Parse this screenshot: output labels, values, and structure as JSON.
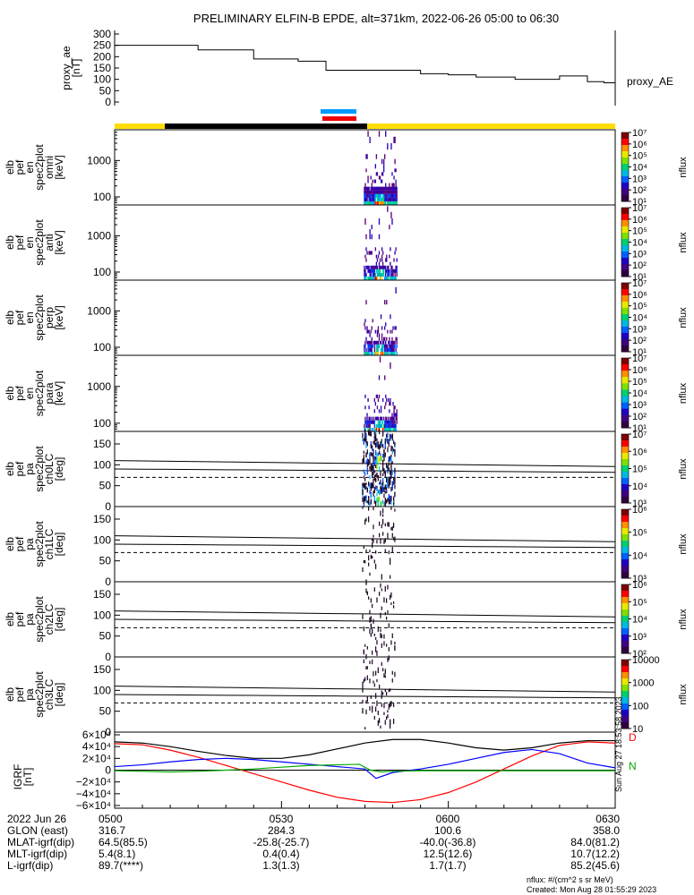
{
  "title": "PRELIMINARY ELFIN-B EPDE, alt=371km, 2022-06-26 05:00 to 06:30",
  "chart_data": [
    {
      "type": "line",
      "panel": "proxy_ae",
      "ylabel_lines": [
        "proxy_ae",
        "[nT]"
      ],
      "right_label": "proxy_AE",
      "yticks": [
        "300",
        "250",
        "200",
        "150",
        "100",
        "50",
        "0"
      ],
      "ylim": [
        0,
        300
      ],
      "x_minutes": [
        0,
        10,
        15,
        25,
        33,
        38,
        45,
        55,
        60,
        65,
        72,
        80,
        85,
        88,
        90
      ],
      "values": [
        250,
        250,
        230,
        190,
        180,
        140,
        140,
        125,
        120,
        110,
        100,
        115,
        90,
        85,
        95
      ]
    },
    {
      "type": "heatmap",
      "panel": "spec-omni",
      "ylabel_lines": [
        "elb",
        "pef",
        "en",
        "spec2plot",
        "omni",
        "[keV]"
      ],
      "yticks": [
        "1000",
        "100"
      ],
      "ylim": [
        60,
        7000
      ],
      "colorbar": {
        "label": "nflux",
        "ticks": [
          "10⁷",
          "10⁶",
          "10⁵",
          "10⁴",
          "10³",
          "10²",
          "10¹"
        ]
      }
    },
    {
      "type": "heatmap",
      "panel": "spec-anti",
      "ylabel_lines": [
        "elb",
        "pef",
        "en",
        "spec2plot",
        "anti",
        "[keV]"
      ],
      "yticks": [
        "1000",
        "100"
      ],
      "ylim": [
        60,
        7000
      ],
      "colorbar": {
        "label": "nflux",
        "ticks": [
          "10⁷",
          "10⁶",
          "10⁵",
          "10⁴",
          "10³",
          "10²",
          "10¹"
        ]
      }
    },
    {
      "type": "heatmap",
      "panel": "spec-perp",
      "ylabel_lines": [
        "elb",
        "pef",
        "en",
        "spec2plot",
        "perp",
        "[keV]"
      ],
      "yticks": [
        "1000",
        "100"
      ],
      "ylim": [
        60,
        7000
      ],
      "colorbar": {
        "label": "nflux",
        "ticks": [
          "10⁷",
          "10⁶",
          "10⁵",
          "10⁴",
          "10³",
          "10²",
          "10¹"
        ]
      }
    },
    {
      "type": "heatmap",
      "panel": "spec-para",
      "ylabel_lines": [
        "elb",
        "pef",
        "en",
        "spec2plot",
        "para",
        "[keV]"
      ],
      "yticks": [
        "1000",
        "100"
      ],
      "ylim": [
        60,
        7000
      ],
      "colorbar": {
        "label": "nflux",
        "ticks": [
          "10⁷",
          "10⁶",
          "10⁵",
          "10⁴",
          "10³",
          "10²",
          "10¹"
        ]
      }
    },
    {
      "type": "heatmap",
      "panel": "pa-ch0",
      "ylabel_lines": [
        "elb",
        "pef",
        "pa",
        "spec2plot",
        "ch0LC",
        "[deg]"
      ],
      "yticks": [
        "150",
        "100",
        "50",
        "0"
      ],
      "ylim": [
        0,
        180
      ],
      "colorbar": {
        "label": "nflux",
        "ticks": [
          "10⁷",
          "10⁶",
          "10⁵",
          "10⁴",
          "10³"
        ]
      }
    },
    {
      "type": "heatmap",
      "panel": "pa-ch1",
      "ylabel_lines": [
        "elb",
        "pef",
        "pa",
        "spec2plot",
        "ch1LC",
        "[deg]"
      ],
      "yticks": [
        "150",
        "100",
        "50",
        "0"
      ],
      "ylim": [
        0,
        180
      ],
      "colorbar": {
        "label": "nflux",
        "ticks": [
          "10⁶",
          "10⁵",
          "10⁴",
          "10³"
        ]
      }
    },
    {
      "type": "heatmap",
      "panel": "pa-ch2",
      "ylabel_lines": [
        "elb",
        "pef",
        "pa",
        "spec2plot",
        "ch2LC",
        "[deg]"
      ],
      "yticks": [
        "150",
        "100",
        "50",
        "0"
      ],
      "ylim": [
        0,
        180
      ],
      "colorbar": {
        "label": "nflux",
        "ticks": [
          "10⁶",
          "10⁵",
          "10⁴",
          "10³",
          "10²"
        ]
      }
    },
    {
      "type": "heatmap",
      "panel": "pa-ch3",
      "ylabel_lines": [
        "elb",
        "pef",
        "pa",
        "spec2plot",
        "ch3LC",
        "[deg]"
      ],
      "yticks": [
        "150",
        "100",
        "50",
        "0"
      ],
      "ylim": [
        0,
        180
      ],
      "colorbar": {
        "label": "nflux",
        "ticks": [
          "10000",
          "1000",
          "100",
          "10"
        ]
      }
    },
    {
      "type": "line",
      "panel": "igrf",
      "ylabel_lines": [
        "IGRF",
        "[nT]"
      ],
      "yticks": [
        "6×10⁴",
        "4×10⁴",
        "2×10⁴",
        "0",
        "−2×10⁴",
        "−4×10⁴",
        "−6×10⁴"
      ],
      "ylim": [
        -60000,
        60000
      ],
      "right_labels": [
        "D",
        "N"
      ],
      "series": [
        {
          "color": "#000000",
          "x_minutes": [
            0,
            5,
            10,
            15,
            20,
            25,
            30,
            35,
            40,
            45,
            50,
            55,
            60,
            65,
            70,
            75,
            80,
            85,
            90
          ],
          "values": [
            48000,
            46000,
            40000,
            32000,
            25000,
            20000,
            20000,
            26000,
            36000,
            46000,
            52000,
            52000,
            46000,
            38000,
            34000,
            38000,
            46000,
            50000,
            50000
          ]
        },
        {
          "color": "#ff0000",
          "x_minutes": [
            0,
            5,
            10,
            15,
            20,
            25,
            30,
            35,
            40,
            45,
            50,
            55,
            60,
            65,
            70,
            75,
            80,
            85,
            90
          ],
          "values": [
            45000,
            43000,
            34000,
            22000,
            8000,
            -6000,
            -20000,
            -34000,
            -46000,
            -53000,
            -55000,
            -50000,
            -38000,
            -20000,
            2000,
            24000,
            42000,
            48000,
            46000
          ]
        },
        {
          "color": "#0000ff",
          "x_minutes": [
            0,
            5,
            10,
            15,
            20,
            25,
            30,
            35,
            40,
            45,
            47,
            50,
            55,
            60,
            65,
            70,
            75,
            80,
            85,
            90
          ],
          "values": [
            6000,
            9000,
            14000,
            18000,
            20000,
            18000,
            14000,
            10000,
            6000,
            2000,
            -14000,
            -4000,
            2000,
            10000,
            20000,
            30000,
            35000,
            28000,
            12000,
            4000
          ]
        },
        {
          "color": "#00aa00",
          "x_minutes": [
            0,
            5,
            10,
            15,
            20,
            25,
            30,
            35,
            40,
            44,
            46,
            48,
            50,
            55,
            60,
            65,
            70,
            75,
            80,
            85,
            90
          ],
          "values": [
            -1000,
            -2000,
            -3000,
            -2000,
            0,
            2000,
            5000,
            8000,
            9000,
            10000,
            0,
            -3000,
            -2000,
            -1000,
            -1000,
            -1000,
            -1000,
            -1000,
            -1000,
            -1000,
            -1000
          ]
        }
      ]
    }
  ],
  "xaxis": {
    "row_labels": [
      "2022 Jun 26",
      "GLON (east)",
      "MLAT-igrf(dip)",
      "MLT-igrf(dip)",
      "L-igrf(dip)"
    ],
    "columns": [
      {
        "time": "0500",
        "values": [
          "316.7",
          "64.5(85.5)",
          "5.4(8.1)",
          "89.7(****)"
        ]
      },
      {
        "time": "0530",
        "values": [
          "284.3",
          "-25.8(-25.7)",
          "0.4(0.4)",
          "1.3(1.3)"
        ]
      },
      {
        "time": "0600",
        "values": [
          "100.6",
          "-40.0(-36.8)",
          "12.5(12.6)",
          "1.7(1.7)"
        ]
      },
      {
        "time": "0630",
        "values": [
          "358.0",
          "84.0(81.2)",
          "10.7(12.2)",
          "85.2(45.6)"
        ]
      }
    ]
  },
  "footer": {
    "units": "nflux: #/(cm^2 s sr MeV)",
    "created": "Created: Mon Aug 28 01:55:29 2023",
    "side_stamp": "Sun Aug 27 18:53:58 2023"
  },
  "colors": {
    "state_bar_yellow": "#ffdd00",
    "state_bar_black": "#000000",
    "science_blue": "#0099ff",
    "science_red": "#ee0000"
  }
}
